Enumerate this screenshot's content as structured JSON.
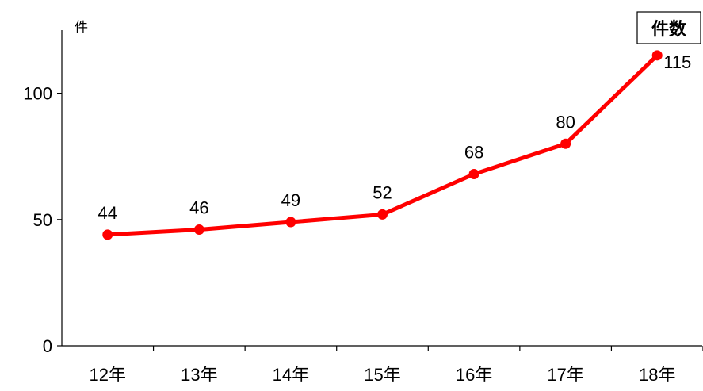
{
  "chart_data": {
    "type": "line",
    "title": "",
    "xlabel": "",
    "ylabel": "件",
    "categories": [
      "12年",
      "13年",
      "14年",
      "15年",
      "16年",
      "17年",
      "18年"
    ],
    "series": [
      {
        "name": "件数",
        "color": "#ff0000",
        "values": [
          44,
          46,
          49,
          52,
          68,
          80,
          115
        ]
      }
    ],
    "ylim": [
      0,
      125
    ],
    "yticks": [
      0,
      50,
      100
    ],
    "grid": false,
    "legend": "top-right",
    "data_labels": true
  }
}
